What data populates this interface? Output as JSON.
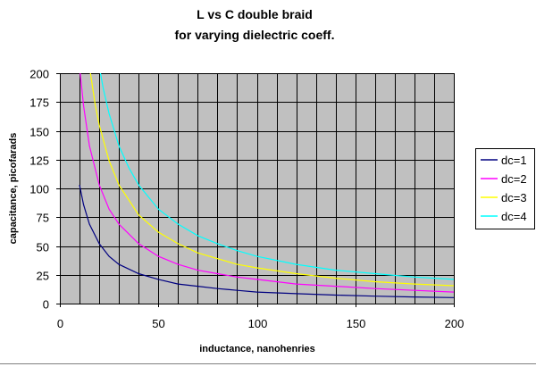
{
  "chart_data": {
    "type": "line",
    "title": [
      "L vs C double braid",
      "for varying dielectric coeff."
    ],
    "xlabel": "inductance, nanohenries",
    "ylabel": "capacitance, picofarads",
    "xlim": [
      0,
      200
    ],
    "ylim": [
      0,
      200
    ],
    "xticks": [
      0,
      50,
      100,
      150,
      200
    ],
    "yticks": [
      0,
      25,
      50,
      75,
      100,
      125,
      150,
      175,
      200
    ],
    "grid": true,
    "legend_position": "right",
    "plot_background": "#c0c0c0",
    "series": [
      {
        "name": "dc=1",
        "color": "#000080",
        "x": [
          10,
          12,
          15,
          20,
          25,
          30,
          40,
          50,
          60,
          70,
          80,
          90,
          100,
          120,
          140,
          160,
          180,
          200
        ],
        "y": [
          103,
          86,
          69,
          52,
          41,
          34,
          26,
          21,
          17,
          15,
          13,
          11.5,
          10,
          8.6,
          7.4,
          6.4,
          5.7,
          5.2
        ]
      },
      {
        "name": "dc=2",
        "color": "#ff00ff",
        "x": [
          10,
          12,
          15,
          20,
          25,
          30,
          40,
          50,
          60,
          70,
          80,
          90,
          100,
          120,
          140,
          160,
          180,
          200
        ],
        "y": [
          206,
          172,
          137,
          103,
          82,
          69,
          52,
          41,
          34,
          29,
          26,
          23,
          21,
          17,
          15,
          13,
          11.5,
          10
        ]
      },
      {
        "name": "dc=3",
        "color": "#ffff00",
        "x": [
          15,
          18,
          20,
          25,
          30,
          40,
          50,
          60,
          70,
          80,
          90,
          100,
          120,
          140,
          160,
          180,
          200
        ],
        "y": [
          206,
          172,
          155,
          124,
          103,
          77,
          62,
          52,
          44,
          39,
          34,
          31,
          26,
          22,
          19,
          17,
          15.5
        ]
      },
      {
        "name": "dc=4",
        "color": "#00ffff",
        "x": [
          20,
          22,
          25,
          30,
          35,
          40,
          50,
          60,
          70,
          80,
          90,
          100,
          120,
          140,
          160,
          180,
          200
        ],
        "y": [
          206,
          187,
          165,
          137,
          118,
          103,
          82,
          69,
          59,
          52,
          46,
          41,
          34,
          29,
          26,
          23,
          21
        ]
      }
    ]
  }
}
